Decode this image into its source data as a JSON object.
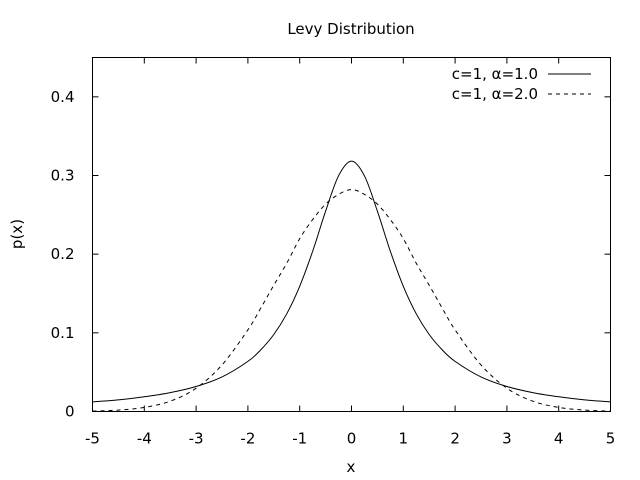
{
  "chart_data": {
    "type": "line",
    "title": "Levy Distribution",
    "xlabel": "x",
    "ylabel": "p(x)",
    "xlim": [
      -5,
      5
    ],
    "ylim": [
      0,
      0.45
    ],
    "x_ticks": [
      "-5",
      "-4",
      "-3",
      "-2",
      "-1",
      "0",
      "1",
      "2",
      "3",
      "4",
      "5"
    ],
    "y_ticks": [
      "0",
      "0.1",
      "0.2",
      "0.3",
      "0.4"
    ],
    "grid": false,
    "legend_position": "top-right",
    "series": [
      {
        "name": "c=1, α=1.0",
        "style": "solid",
        "color": "#000000",
        "x": [
          -5,
          -4.5,
          -4,
          -3.5,
          -3,
          -2.5,
          -2,
          -1.75,
          -1.5,
          -1.25,
          -1,
          -0.75,
          -0.5,
          -0.25,
          0,
          0.25,
          0.5,
          0.75,
          1,
          1.25,
          1.5,
          1.75,
          2,
          2.5,
          3,
          3.5,
          4,
          4.5,
          5
        ],
        "y": [
          0.0122,
          0.0148,
          0.0187,
          0.024,
          0.0318,
          0.0439,
          0.0637,
          0.0785,
          0.0979,
          0.1242,
          0.1592,
          0.2037,
          0.2546,
          0.2996,
          0.3183,
          0.2996,
          0.2546,
          0.2037,
          0.1592,
          0.1242,
          0.0979,
          0.0785,
          0.0637,
          0.0439,
          0.0318,
          0.024,
          0.0187,
          0.0148,
          0.0122
        ]
      },
      {
        "name": "c=1, α=2.0",
        "style": "dashed",
        "color": "#000000",
        "x": [
          -5,
          -4.5,
          -4,
          -3.5,
          -3,
          -2.5,
          -2,
          -1.75,
          -1.5,
          -1.25,
          -1,
          -0.75,
          -0.5,
          -0.25,
          0,
          0.25,
          0.5,
          0.75,
          1,
          1.25,
          1.5,
          1.75,
          2,
          2.5,
          3,
          3.5,
          4,
          4.5,
          5
        ],
        "y": [
          0.0005,
          0.0018,
          0.0052,
          0.0131,
          0.0296,
          0.0592,
          0.1038,
          0.1316,
          0.1605,
          0.1885,
          0.2197,
          0.244,
          0.2636,
          0.276,
          0.2821,
          0.276,
          0.2636,
          0.244,
          0.2197,
          0.1885,
          0.1605,
          0.1316,
          0.1038,
          0.0592,
          0.0296,
          0.0131,
          0.0052,
          0.0018,
          0.0005
        ]
      }
    ]
  }
}
